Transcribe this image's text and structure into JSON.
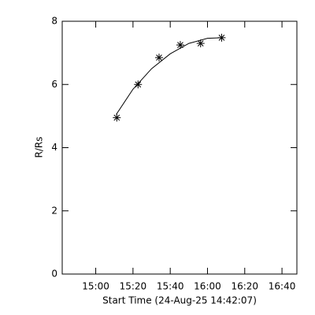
{
  "chart_data": {
    "type": "scatter",
    "xlabel": "Start Time (24-Aug-25 14:42:07)",
    "ylabel": "R/Rs",
    "x": [
      911.3,
      922.7,
      934,
      945.4,
      956.3,
      967.6
    ],
    "values": [
      4.95,
      6.0,
      6.85,
      7.25,
      7.3,
      7.48
    ],
    "marker": "asterisk",
    "color": "#000000",
    "fit": {
      "x": [
        911,
        920,
        930,
        940,
        950,
        960,
        968
      ],
      "values": [
        5.05,
        5.85,
        6.5,
        6.97,
        7.3,
        7.46,
        7.48
      ]
    },
    "xlim": [
      882,
      1008
    ],
    "xticks": [
      {
        "value": 900,
        "label": "15:00"
      },
      {
        "value": 920,
        "label": "15:20"
      },
      {
        "value": 940,
        "label": "15:40"
      },
      {
        "value": 960,
        "label": "16:00"
      },
      {
        "value": 980,
        "label": "16:20"
      },
      {
        "value": 1000,
        "label": "16:40"
      }
    ],
    "ylim": [
      0,
      8
    ],
    "yticks": [
      0,
      2,
      4,
      6,
      8
    ]
  }
}
